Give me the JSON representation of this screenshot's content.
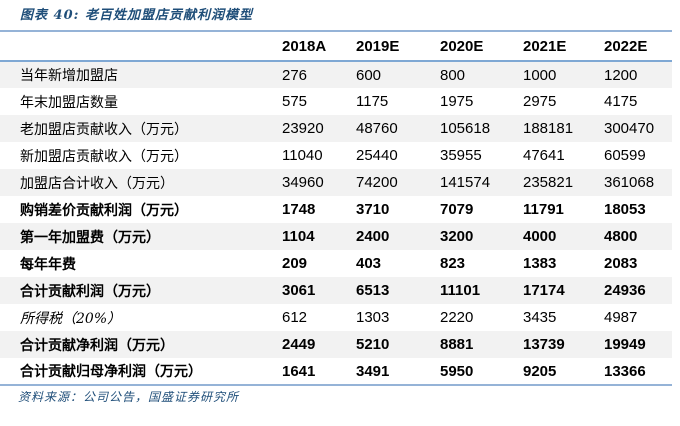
{
  "figure": {
    "title": "图表 40:  老百姓加盟店贡献利润模型",
    "source": "资料来源：公司公告，国盛证券研究所"
  },
  "colors": {
    "title_text": "#1F4E79",
    "rule_blue_light": "#95B3D7",
    "rule_blue_header": "#7FA8D4",
    "row_shade": "#F2F2F2",
    "body_text": "#000000"
  },
  "chart_data": {
    "type": "table",
    "title": "图表 40:  老百姓加盟店贡献利润模型",
    "columns": [
      "",
      "2018A",
      "2019E",
      "2020E",
      "2021E",
      "2022E"
    ],
    "rows": [
      {
        "label": "当年新增加盟店",
        "values": [
          276,
          600,
          800,
          1000,
          1200
        ],
        "style": "regular"
      },
      {
        "label": "年末加盟店数量",
        "values": [
          575,
          1175,
          1975,
          2975,
          4175
        ],
        "style": "regular"
      },
      {
        "label": "老加盟店贡献收入（万元）",
        "values": [
          23920,
          48760,
          105618,
          188181,
          300470
        ],
        "style": "regular"
      },
      {
        "label": "新加盟店贡献收入（万元）",
        "values": [
          11040,
          25440,
          35955,
          47641,
          60599
        ],
        "style": "regular"
      },
      {
        "label": "加盟店合计收入（万元）",
        "values": [
          34960,
          74200,
          141574,
          235821,
          361068
        ],
        "style": "regular"
      },
      {
        "label": "购销差价贡献利润（万元）",
        "values": [
          1748,
          3710,
          7079,
          11791,
          18053
        ],
        "style": "bold"
      },
      {
        "label": "第一年加盟费（万元）",
        "values": [
          1104,
          2400,
          3200,
          4000,
          4800
        ],
        "style": "bold"
      },
      {
        "label": "每年年费",
        "values": [
          209,
          403,
          823,
          1383,
          2083
        ],
        "style": "bold"
      },
      {
        "label": "合计贡献利润（万元）",
        "values": [
          3061,
          6513,
          11101,
          17174,
          24936
        ],
        "style": "bold"
      },
      {
        "label": "所得税（20%）",
        "values": [
          612,
          1303,
          2220,
          3435,
          4987
        ],
        "style": "italic"
      },
      {
        "label": "合计贡献净利润（万元）",
        "values": [
          2449,
          5210,
          8881,
          13739,
          19949
        ],
        "style": "bold"
      },
      {
        "label": "合计贡献归母净利润（万元）",
        "values": [
          1641,
          3491,
          5950,
          9205,
          13366
        ],
        "style": "bold"
      }
    ],
    "source_note": "资料来源：公司公告，国盛证券研究所",
    "layout": {
      "shaded_row_indexes": [
        0,
        2,
        4,
        6,
        8,
        10
      ],
      "grid": "horizontal-rules-only",
      "alignment": "left"
    }
  }
}
